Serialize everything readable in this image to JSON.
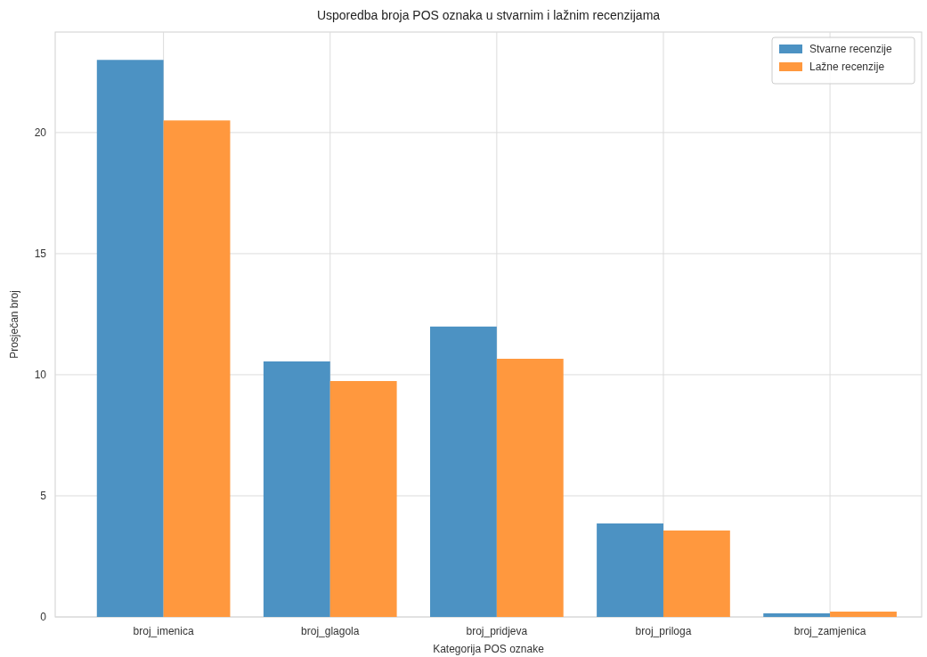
{
  "chart_data": {
    "type": "bar",
    "title": "Usporedba broja POS oznaka u stvarnim i lažnim recenzijama",
    "xlabel": "Kategorija POS oznake",
    "ylabel": "Prosječan broj",
    "categories": [
      "broj_imenica",
      "broj_glagola",
      "broj_pridjeva",
      "broj_priloga",
      "broj_zamjenica"
    ],
    "series": [
      {
        "name": "Stvarne recenzije",
        "color": "#4c92c3",
        "values": [
          23.0,
          10.55,
          11.99,
          3.86,
          0.15
        ]
      },
      {
        "name": "Lažne recenzije",
        "color": "#ff983e",
        "values": [
          20.5,
          9.74,
          10.66,
          3.57,
          0.22
        ]
      }
    ],
    "ylim": [
      0,
      24.15
    ],
    "yticks": [
      0,
      5,
      10,
      15,
      20
    ],
    "grid": true,
    "legend": "top right"
  }
}
